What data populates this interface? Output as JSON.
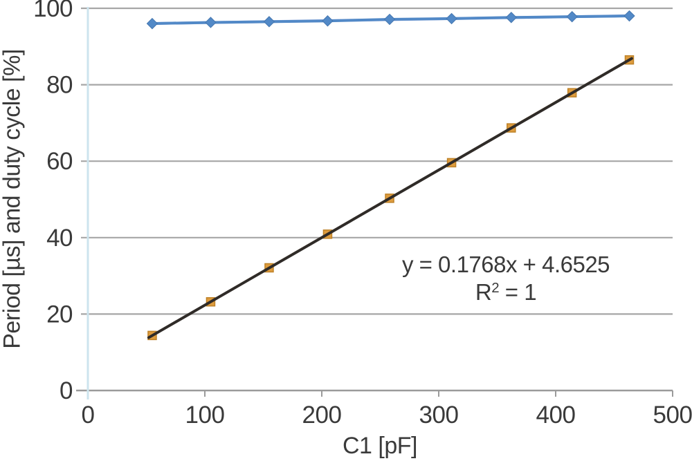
{
  "chart_data": {
    "type": "line",
    "title": "",
    "xlabel": "C1 [pF]",
    "ylabel": "Period [µs] and duty cycle [%]",
    "xlim": [
      0,
      500
    ],
    "ylim": [
      0,
      100
    ],
    "xticks": [
      0,
      100,
      200,
      300,
      400,
      500
    ],
    "yticks": [
      0,
      20,
      40,
      60,
      80,
      100
    ],
    "grid": "horizontal",
    "legend_position": "none",
    "x": [
      55,
      105,
      155,
      205,
      258,
      311,
      362,
      414,
      463
    ],
    "series": [
      {
        "name": "Duty cycle [%]",
        "marker": "diamond",
        "color": "#5289C7",
        "marker_stroke": "#4577B0",
        "values": [
          96.0,
          96.3,
          96.5,
          96.7,
          97.1,
          97.3,
          97.6,
          97.8,
          98.0
        ],
        "trendline": {
          "type": "linear",
          "color": "#A9B8E4"
        }
      },
      {
        "name": "Period [µs]",
        "marker": "square",
        "color": "#DE9C3E",
        "marker_stroke": "#BE8228",
        "values": [
          14.4,
          23.2,
          32.1,
          40.9,
          50.3,
          59.6,
          68.7,
          77.9,
          86.5
        ],
        "trendline": {
          "type": "linear",
          "color": "#2F2B28",
          "slope": 0.1768,
          "intercept": 4.6525
        }
      }
    ],
    "annotation": {
      "equation": "y = 0.1768x + 4.6525",
      "r_base": "R",
      "r_exponent": "2",
      "r_rest": " = 1"
    },
    "colors": {
      "text": "#3A3A3A",
      "gridline": "#A6A6A6",
      "axis_line": "#9B9B9B",
      "y_axis_line": "#CDE4EE",
      "background": "#FFFFFF"
    }
  }
}
